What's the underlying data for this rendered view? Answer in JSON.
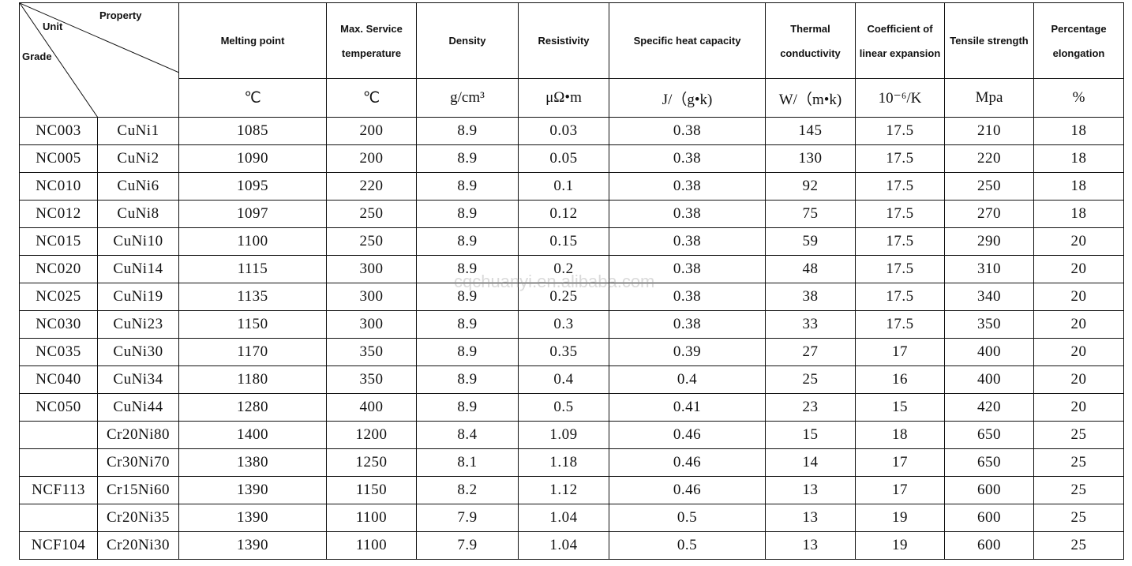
{
  "corner": {
    "property": "Property",
    "unit": "Unit",
    "grade": "Grade"
  },
  "headers": [
    "Melting point",
    "Max. Service temperature",
    "Density",
    "Resistivity",
    "Specific heat capacity",
    "Thermal conductivity",
    "Coefficient of linear expansion",
    "Tensile strength",
    "Percentage elongation"
  ],
  "units": [
    "℃",
    "℃",
    "g/cm³",
    "μΩ•m",
    "J/（g•k)",
    "W/（m•k)",
    "10⁻⁶/K",
    "Mpa",
    "%"
  ],
  "rows": [
    [
      "NC003",
      "CuNi1",
      "1085",
      "200",
      "8.9",
      "0.03",
      "0.38",
      "145",
      "17.5",
      "210",
      "18"
    ],
    [
      "NC005",
      "CuNi2",
      "1090",
      "200",
      "8.9",
      "0.05",
      "0.38",
      "130",
      "17.5",
      "220",
      "18"
    ],
    [
      "NC010",
      "CuNi6",
      "1095",
      "220",
      "8.9",
      "0.1",
      "0.38",
      "92",
      "17.5",
      "250",
      "18"
    ],
    [
      "NC012",
      "CuNi8",
      "1097",
      "250",
      "8.9",
      "0.12",
      "0.38",
      "75",
      "17.5",
      "270",
      "18"
    ],
    [
      "NC015",
      "CuNi10",
      "1100",
      "250",
      "8.9",
      "0.15",
      "0.38",
      "59",
      "17.5",
      "290",
      "20"
    ],
    [
      "NC020",
      "CuNi14",
      "1115",
      "300",
      "8.9",
      "0.2",
      "0.38",
      "48",
      "17.5",
      "310",
      "20"
    ],
    [
      "NC025",
      "CuNi19",
      "1135",
      "300",
      "8.9",
      "0.25",
      "0.38",
      "38",
      "17.5",
      "340",
      "20"
    ],
    [
      "NC030",
      "CuNi23",
      "1150",
      "300",
      "8.9",
      "0.3",
      "0.38",
      "33",
      "17.5",
      "350",
      "20"
    ],
    [
      "NC035",
      "CuNi30",
      "1170",
      "350",
      "8.9",
      "0.35",
      "0.39",
      "27",
      "17",
      "400",
      "20"
    ],
    [
      "NC040",
      "CuNi34",
      "1180",
      "350",
      "8.9",
      "0.4",
      "0.4",
      "25",
      "16",
      "400",
      "20"
    ],
    [
      "NC050",
      "CuNi44",
      "1280",
      "400",
      "8.9",
      "0.5",
      "0.41",
      "23",
      "15",
      "420",
      "20"
    ],
    [
      "",
      "Cr20Ni80",
      "1400",
      "1200",
      "8.4",
      "1.09",
      "0.46",
      "15",
      "18",
      "650",
      "25"
    ],
    [
      "",
      "Cr30Ni70",
      "1380",
      "1250",
      "8.1",
      "1.18",
      "0.46",
      "14",
      "17",
      "650",
      "25"
    ],
    [
      "NCF113",
      "Cr15Ni60",
      "1390",
      "1150",
      "8.2",
      "1.12",
      "0.46",
      "13",
      "17",
      "600",
      "25"
    ],
    [
      "",
      "Cr20Ni35",
      "1390",
      "1100",
      "7.9",
      "1.04",
      "0.5",
      "13",
      "19",
      "600",
      "25"
    ],
    [
      "NCF104",
      "Cr20Ni30",
      "1390",
      "1100",
      "7.9",
      "1.04",
      "0.5",
      "13",
      "19",
      "600",
      "25"
    ]
  ],
  "watermark": "cqchuanyi.en.alibaba.com"
}
